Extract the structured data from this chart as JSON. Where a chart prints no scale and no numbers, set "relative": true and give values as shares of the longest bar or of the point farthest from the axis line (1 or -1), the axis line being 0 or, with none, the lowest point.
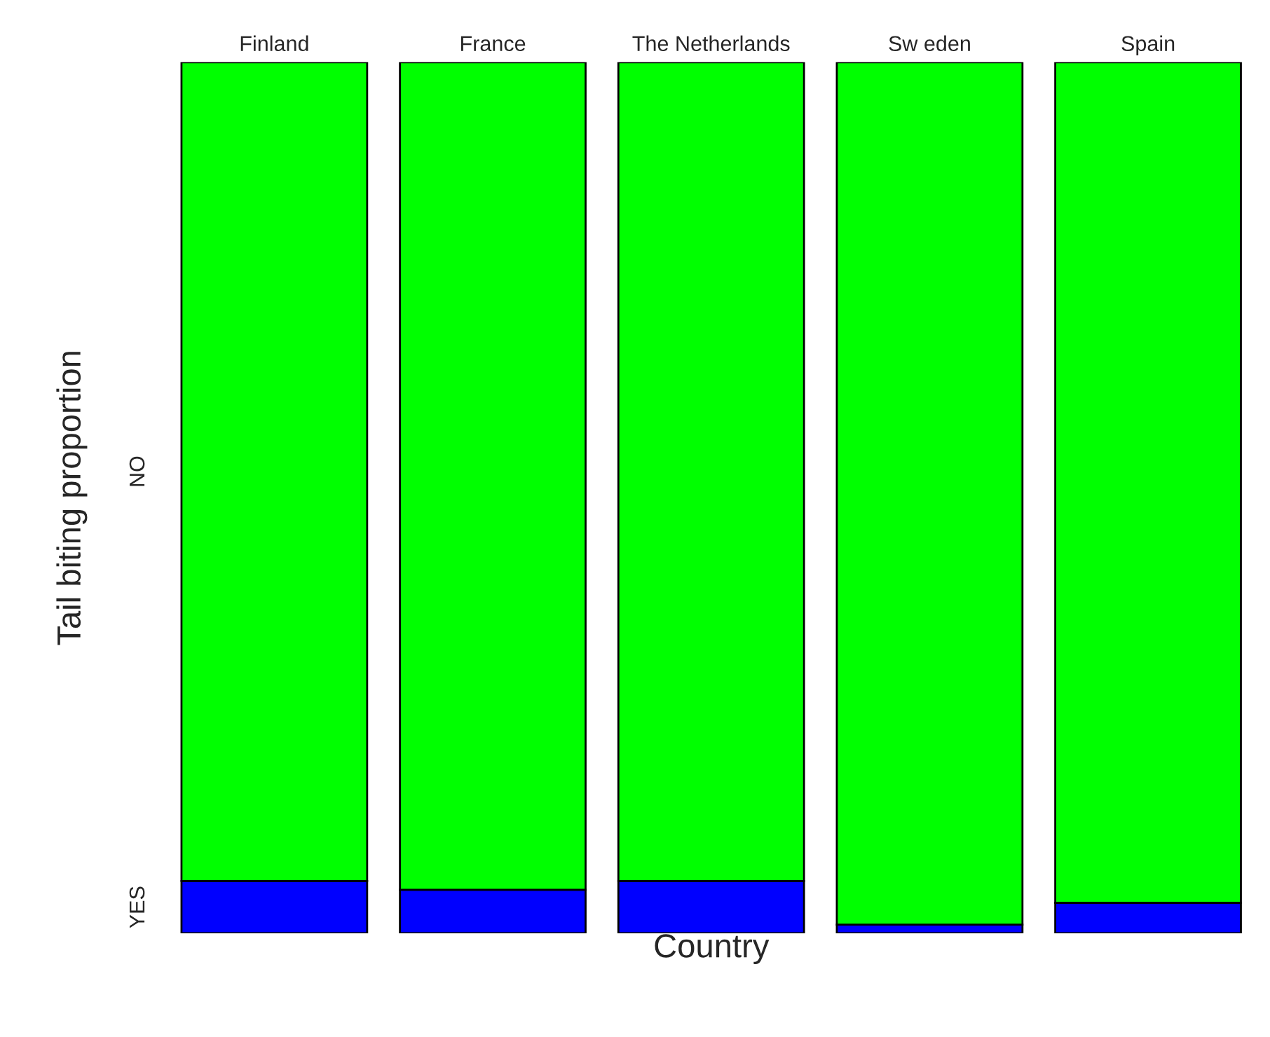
{
  "chart_data": {
    "type": "bar",
    "stacked": true,
    "relative": true,
    "xlabel": "Country",
    "ylabel": "Tail biting proportion",
    "categories": [
      "Finland",
      "France",
      "The Netherlands",
      "Sw eden",
      "Spain"
    ],
    "series": [
      {
        "name": "YES",
        "color": "#0000ff",
        "values": [
          0.06,
          0.05,
          0.06,
          0.01,
          0.035
        ]
      },
      {
        "name": "NO",
        "color": "#00ff00",
        "values": [
          0.94,
          0.95,
          0.94,
          0.99,
          0.965
        ]
      }
    ]
  }
}
